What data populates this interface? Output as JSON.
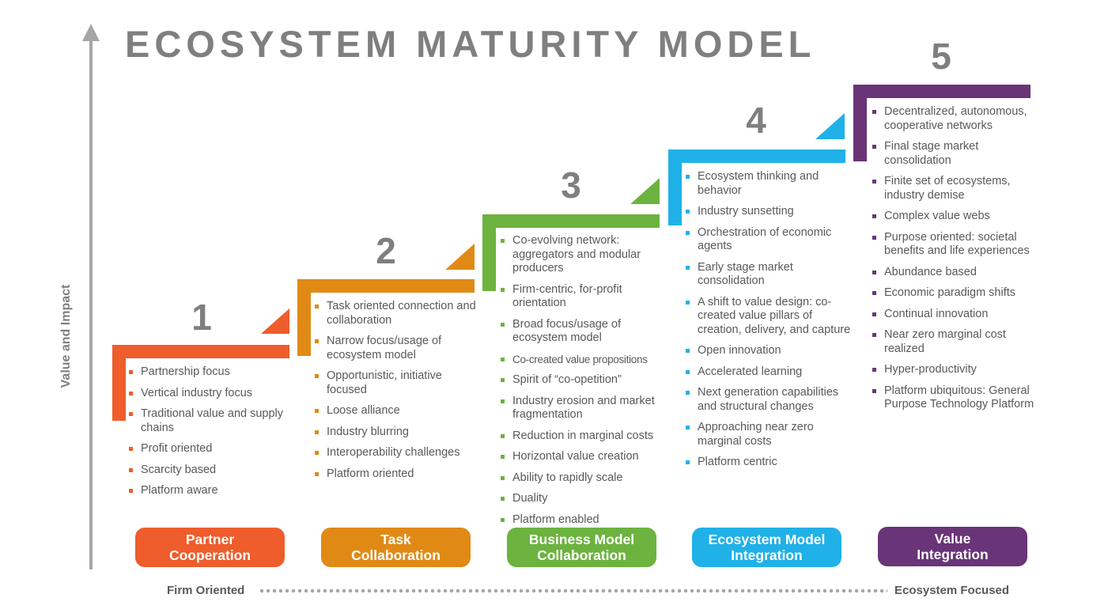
{
  "title": "ECOSYSTEM MATURITY MODEL",
  "y_axis_label": "Value and Impact",
  "x_axis": {
    "left_label": "Firm Oriented",
    "right_label": "Ecosystem Focused"
  },
  "colors": {
    "stage1": "#ee5d2b",
    "stage2": "#e08a15",
    "stage3": "#6cb33f",
    "stage4": "#1fb1e8",
    "stage5": "#6a3478",
    "axis": "#a6a6a6",
    "heading": "#7f7f7f"
  },
  "stages": [
    {
      "number": "1",
      "label": "Partner\nCooperation",
      "items": [
        "Partnership focus",
        "Vertical industry focus",
        "Traditional value and supply chains",
        "Profit oriented",
        "Scarcity based",
        "Platform aware"
      ]
    },
    {
      "number": "2",
      "label": "Task\nCollaboration",
      "items": [
        "Task oriented connection and collaboration",
        "Narrow focus/usage of ecosystem model",
        "Opportunistic, initiative focused",
        "Loose alliance",
        "Industry blurring",
        "Interoperability challenges",
        "Platform oriented"
      ]
    },
    {
      "number": "3",
      "label": "Business Model\nCollaboration",
      "items": [
        "Co-evolving network: aggregators and modular producers",
        "Firm-centric, for-profit orientation",
        "Broad focus/usage of ecosystem model",
        "Co-created value propositions",
        "Spirit of “co-opetition”",
        "Industry erosion and market fragmentation",
        "Reduction in marginal costs",
        "Horizontal value creation",
        "Ability to rapidly scale",
        "Duality",
        "Platform enabled"
      ]
    },
    {
      "number": "4",
      "label": "Ecosystem Model\nIntegration",
      "items": [
        "Ecosystem thinking and behavior",
        "Industry sunsetting",
        "Orchestration of economic agents",
        "Early stage market consolidation",
        "A shift to value design: co-created value pillars of creation, delivery, and capture",
        "Open innovation",
        "Accelerated learning",
        "Next generation capabilities and structural changes",
        "Approaching near zero marginal costs",
        "Platform centric"
      ]
    },
    {
      "number": "5",
      "label": "Value\nIntegration",
      "items": [
        "Decentralized, autonomous, cooperative networks",
        "Final stage market consolidation",
        "Finite set of ecosystems, industry demise",
        "Complex value webs",
        "Purpose oriented: societal benefits and life experiences",
        "Abundance based",
        "Economic paradigm shifts",
        "Continual innovation",
        "Near zero marginal cost realized",
        "Hyper-productivity",
        "Platform ubiquitous: General Purpose Technology Platform"
      ]
    }
  ]
}
